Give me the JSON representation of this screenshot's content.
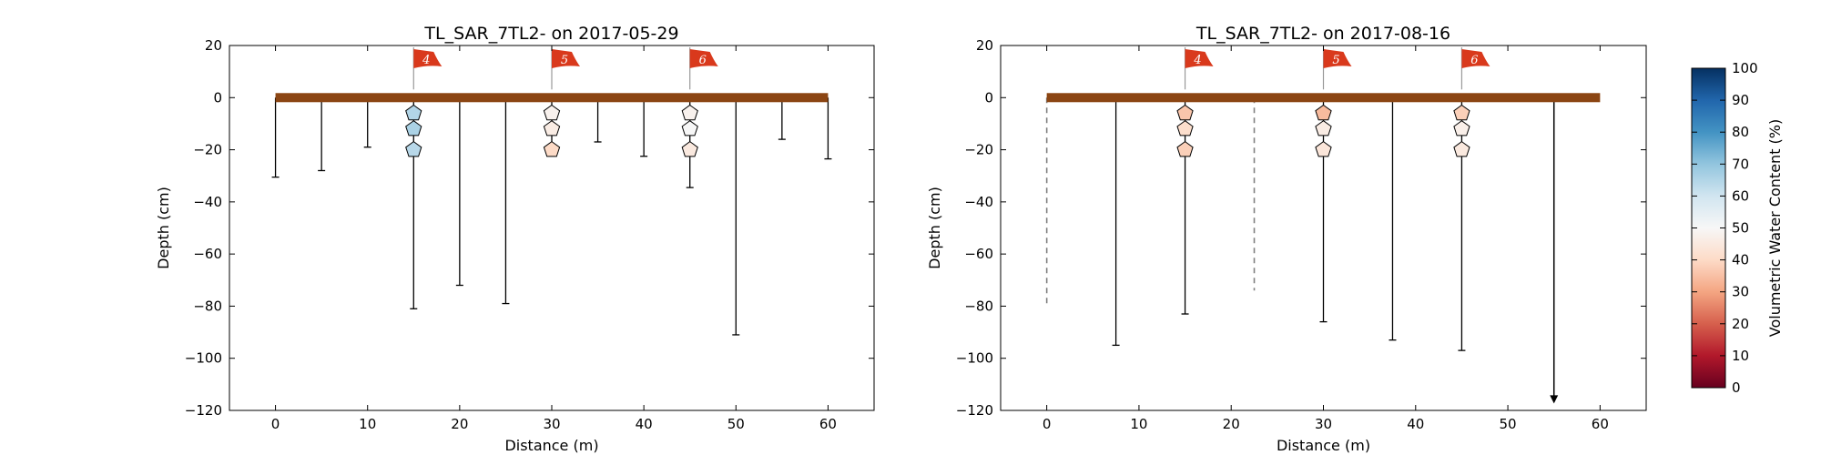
{
  "chart_data": [
    {
      "type": "scatter",
      "title": "TL_SAR_7TL2-  on 2017-05-29",
      "xlabel": "Distance (m)",
      "ylabel": "Depth (cm)",
      "xlim": [
        -5,
        65
      ],
      "ylim": [
        -120,
        20
      ],
      "xticks": [
        "0",
        "10",
        "20",
        "30",
        "40",
        "50",
        "60"
      ],
      "yticks": [
        "20",
        "0",
        "−20",
        "−40",
        "−60",
        "−80",
        "−100",
        "−120"
      ],
      "ground_bar": {
        "x_start": 0,
        "x_end": 60,
        "depth": 0,
        "color": "#8b4513"
      },
      "flags": [
        {
          "label": "4",
          "x": 15
        },
        {
          "label": "5",
          "x": 30
        },
        {
          "label": "6",
          "x": 45
        }
      ],
      "probe_depths": [
        {
          "x": 0,
          "depth": -30.5,
          "style": "solid"
        },
        {
          "x": 5,
          "depth": -28,
          "style": "solid"
        },
        {
          "x": 10,
          "depth": -19,
          "style": "solid"
        },
        {
          "x": 15,
          "depth": -81,
          "style": "solid"
        },
        {
          "x": 20,
          "depth": -72,
          "style": "solid"
        },
        {
          "x": 25,
          "depth": -79,
          "style": "solid"
        },
        {
          "x": 30,
          "depth": -20,
          "style": "solid"
        },
        {
          "x": 35,
          "depth": -17,
          "style": "solid"
        },
        {
          "x": 40,
          "depth": -22.5,
          "style": "solid"
        },
        {
          "x": 45,
          "depth": -34.5,
          "style": "solid"
        },
        {
          "x": 50,
          "depth": -91,
          "style": "solid"
        },
        {
          "x": 55,
          "depth": -16,
          "style": "solid"
        },
        {
          "x": 60,
          "depth": -23.5,
          "style": "solid"
        }
      ],
      "moisture_sensors": [
        {
          "x": 15,
          "depth": -6,
          "vwc": 65
        },
        {
          "x": 15,
          "depth": -12,
          "vwc": 66
        },
        {
          "x": 15,
          "depth": -20,
          "vwc": 64
        },
        {
          "x": 30,
          "depth": -6,
          "vwc": 48
        },
        {
          "x": 30,
          "depth": -12,
          "vwc": 46
        },
        {
          "x": 30,
          "depth": -20,
          "vwc": 40
        },
        {
          "x": 45,
          "depth": -6,
          "vwc": 48
        },
        {
          "x": 45,
          "depth": -12,
          "vwc": 50
        },
        {
          "x": 45,
          "depth": -20,
          "vwc": 45
        }
      ]
    },
    {
      "type": "scatter",
      "title": "TL_SAR_7TL2-  on 2017-08-16",
      "xlabel": "Distance (m)",
      "ylabel": "Depth (cm)",
      "xlim": [
        -5,
        65
      ],
      "ylim": [
        -120,
        20
      ],
      "xticks": [
        "0",
        "10",
        "20",
        "30",
        "40",
        "50",
        "60"
      ],
      "yticks": [
        "20",
        "0",
        "−20",
        "−40",
        "−60",
        "−80",
        "−100",
        "−120"
      ],
      "ground_bar": {
        "x_start": 0,
        "x_end": 60,
        "depth": 0,
        "color": "#8b4513"
      },
      "flags": [
        {
          "label": "4",
          "x": 15
        },
        {
          "label": "5",
          "x": 30
        },
        {
          "label": "6",
          "x": 45
        }
      ],
      "probe_depths": [
        {
          "x": 0,
          "depth": -79,
          "style": "dashed"
        },
        {
          "x": 7.5,
          "depth": -95,
          "style": "solid"
        },
        {
          "x": 15,
          "depth": -83,
          "style": "solid"
        },
        {
          "x": 22.5,
          "depth": -74,
          "style": "dashed"
        },
        {
          "x": 30,
          "depth": -86,
          "style": "solid"
        },
        {
          "x": 37.5,
          "depth": -93,
          "style": "solid"
        },
        {
          "x": 45,
          "depth": -97,
          "style": "solid"
        },
        {
          "x": 55,
          "depth": -117,
          "style": "arrow"
        }
      ],
      "moisture_sensors": [
        {
          "x": 15,
          "depth": -6,
          "vwc": 36
        },
        {
          "x": 15,
          "depth": -12,
          "vwc": 41
        },
        {
          "x": 15,
          "depth": -20,
          "vwc": 38
        },
        {
          "x": 30,
          "depth": -6,
          "vwc": 34
        },
        {
          "x": 30,
          "depth": -12,
          "vwc": 46
        },
        {
          "x": 30,
          "depth": -20,
          "vwc": 44
        },
        {
          "x": 45,
          "depth": -6,
          "vwc": 38
        },
        {
          "x": 45,
          "depth": -12,
          "vwc": 47
        },
        {
          "x": 45,
          "depth": -20,
          "vwc": 45
        }
      ]
    }
  ],
  "colorbar": {
    "label": "Volumetric Water Content (%)",
    "min": 0,
    "max": 100,
    "ticks": [
      "0",
      "10",
      "20",
      "30",
      "40",
      "50",
      "60",
      "70",
      "80",
      "90",
      "100"
    ],
    "colormap": "RdBu",
    "stops": [
      "#67001f",
      "#b2182b",
      "#d6604d",
      "#f4a582",
      "#fddbc7",
      "#f7f7f7",
      "#d1e5f0",
      "#92c5de",
      "#4393c3",
      "#2166ac",
      "#053061"
    ]
  },
  "colors": {
    "ground": "#8b4513",
    "flag": "#d9391c",
    "probe_line": "#000000",
    "dashed_line": "#808080"
  }
}
